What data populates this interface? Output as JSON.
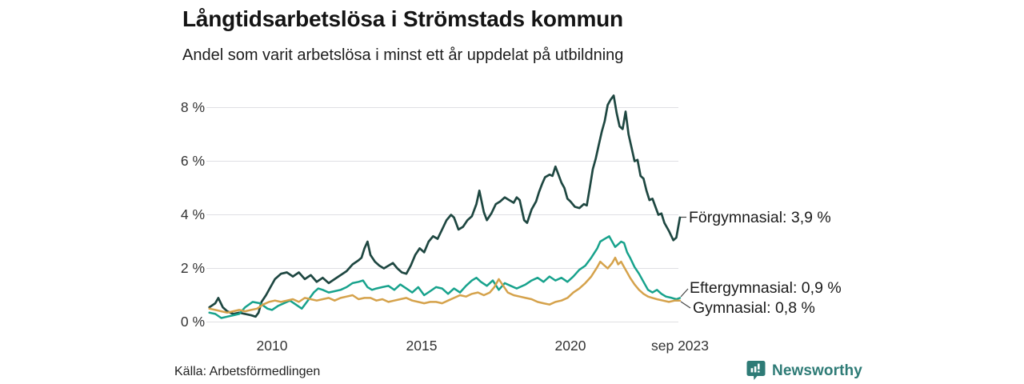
{
  "footer": {
    "source": "Källa: Arbetsförmedlingen",
    "brand": "Newsworthy",
    "brand_color": "#2e7b76"
  },
  "chart_data": {
    "type": "line",
    "title": "Långtidsarbetslösa i Strömstads kommun",
    "subtitle": "Andel som varit arbetslösa i minst ett år uppdelat på utbildning",
    "unit": "%",
    "grid": "horizontal-only",
    "legend_position": "end-of-line-labels",
    "ylim": [
      0,
      8.6
    ],
    "yticks": [
      0,
      2,
      4,
      6,
      8
    ],
    "ytick_labels": [
      "0 %",
      "2 %",
      "4 %",
      "6 %",
      "8 %"
    ],
    "x_range_years": [
      2007.9,
      2023.67
    ],
    "xticks": [
      2010,
      2015,
      2020,
      2023.67
    ],
    "xtick_labels": [
      "2010",
      "2015",
      "2020",
      "sep 2023"
    ],
    "gridline_color": "#dfdfe3",
    "series": [
      {
        "name": "Förgymnasial",
        "end_label": "Förgymnasial: 3,9 %",
        "end_value_pct": 3.9,
        "color": "#1e4741",
        "points": [
          [
            2007.9,
            0.55
          ],
          [
            2008.1,
            0.7
          ],
          [
            2008.2,
            0.9
          ],
          [
            2008.35,
            0.55
          ],
          [
            2008.5,
            0.4
          ],
          [
            2008.7,
            0.3
          ],
          [
            2008.9,
            0.35
          ],
          [
            2009.1,
            0.3
          ],
          [
            2009.3,
            0.25
          ],
          [
            2009.45,
            0.2
          ],
          [
            2009.55,
            0.35
          ],
          [
            2009.65,
            0.75
          ],
          [
            2009.8,
            1.0
          ],
          [
            2009.95,
            1.3
          ],
          [
            2010.1,
            1.6
          ],
          [
            2010.3,
            1.8
          ],
          [
            2010.5,
            1.85
          ],
          [
            2010.7,
            1.7
          ],
          [
            2010.9,
            1.85
          ],
          [
            2011.1,
            1.6
          ],
          [
            2011.3,
            1.75
          ],
          [
            2011.5,
            1.5
          ],
          [
            2011.7,
            1.65
          ],
          [
            2011.9,
            1.45
          ],
          [
            2012.1,
            1.6
          ],
          [
            2012.3,
            1.75
          ],
          [
            2012.5,
            1.9
          ],
          [
            2012.7,
            2.15
          ],
          [
            2012.9,
            2.3
          ],
          [
            2013.0,
            2.4
          ],
          [
            2013.1,
            2.75
          ],
          [
            2013.2,
            3.0
          ],
          [
            2013.3,
            2.5
          ],
          [
            2013.45,
            2.25
          ],
          [
            2013.6,
            2.1
          ],
          [
            2013.75,
            2.0
          ],
          [
            2013.9,
            2.1
          ],
          [
            2014.05,
            2.2
          ],
          [
            2014.2,
            2.0
          ],
          [
            2014.35,
            1.85
          ],
          [
            2014.5,
            1.8
          ],
          [
            2014.65,
            2.1
          ],
          [
            2014.8,
            2.5
          ],
          [
            2014.95,
            2.75
          ],
          [
            2015.1,
            2.6
          ],
          [
            2015.25,
            3.0
          ],
          [
            2015.4,
            3.2
          ],
          [
            2015.55,
            3.1
          ],
          [
            2015.7,
            3.45
          ],
          [
            2015.85,
            3.8
          ],
          [
            2016.0,
            4.0
          ],
          [
            2016.1,
            3.9
          ],
          [
            2016.25,
            3.45
          ],
          [
            2016.4,
            3.55
          ],
          [
            2016.55,
            3.8
          ],
          [
            2016.7,
            3.95
          ],
          [
            2016.85,
            4.4
          ],
          [
            2016.95,
            4.9
          ],
          [
            2017.1,
            4.1
          ],
          [
            2017.2,
            3.8
          ],
          [
            2017.35,
            4.05
          ],
          [
            2017.5,
            4.4
          ],
          [
            2017.65,
            4.5
          ],
          [
            2017.8,
            4.65
          ],
          [
            2017.95,
            4.55
          ],
          [
            2018.1,
            4.45
          ],
          [
            2018.2,
            4.65
          ],
          [
            2018.3,
            4.55
          ],
          [
            2018.45,
            3.8
          ],
          [
            2018.55,
            3.7
          ],
          [
            2018.7,
            4.2
          ],
          [
            2018.85,
            4.5
          ],
          [
            2018.95,
            4.85
          ],
          [
            2019.05,
            5.15
          ],
          [
            2019.15,
            5.4
          ],
          [
            2019.3,
            5.5
          ],
          [
            2019.4,
            5.45
          ],
          [
            2019.5,
            5.8
          ],
          [
            2019.6,
            5.5
          ],
          [
            2019.7,
            5.2
          ],
          [
            2019.8,
            5.0
          ],
          [
            2019.9,
            4.6
          ],
          [
            2020.0,
            4.5
          ],
          [
            2020.15,
            4.3
          ],
          [
            2020.3,
            4.25
          ],
          [
            2020.45,
            4.4
          ],
          [
            2020.55,
            4.35
          ],
          [
            2020.65,
            5.0
          ],
          [
            2020.75,
            5.7
          ],
          [
            2020.85,
            6.1
          ],
          [
            2020.95,
            6.6
          ],
          [
            2021.05,
            7.1
          ],
          [
            2021.15,
            7.5
          ],
          [
            2021.25,
            8.1
          ],
          [
            2021.35,
            8.3
          ],
          [
            2021.45,
            8.45
          ],
          [
            2021.55,
            7.8
          ],
          [
            2021.65,
            7.3
          ],
          [
            2021.75,
            7.2
          ],
          [
            2021.85,
            7.85
          ],
          [
            2021.95,
            7.0
          ],
          [
            2022.05,
            6.5
          ],
          [
            2022.15,
            6.0
          ],
          [
            2022.25,
            6.05
          ],
          [
            2022.35,
            5.45
          ],
          [
            2022.45,
            5.35
          ],
          [
            2022.55,
            4.9
          ],
          [
            2022.65,
            4.55
          ],
          [
            2022.75,
            4.6
          ],
          [
            2022.85,
            4.3
          ],
          [
            2022.95,
            4.0
          ],
          [
            2023.05,
            4.05
          ],
          [
            2023.15,
            3.7
          ],
          [
            2023.3,
            3.4
          ],
          [
            2023.45,
            3.05
          ],
          [
            2023.55,
            3.15
          ],
          [
            2023.67,
            3.9
          ]
        ]
      },
      {
        "name": "Eftergymnasial",
        "end_label": "Eftergymnasial: 0,9 %",
        "end_value_pct": 0.9,
        "color": "#17a28c",
        "points": [
          [
            2007.9,
            0.35
          ],
          [
            2008.1,
            0.3
          ],
          [
            2008.3,
            0.15
          ],
          [
            2008.5,
            0.2
          ],
          [
            2008.7,
            0.25
          ],
          [
            2008.9,
            0.3
          ],
          [
            2009.1,
            0.55
          ],
          [
            2009.35,
            0.75
          ],
          [
            2009.6,
            0.7
          ],
          [
            2009.85,
            0.5
          ],
          [
            2010.0,
            0.45
          ],
          [
            2010.2,
            0.6
          ],
          [
            2010.4,
            0.7
          ],
          [
            2010.6,
            0.8
          ],
          [
            2010.8,
            0.65
          ],
          [
            2011.0,
            0.5
          ],
          [
            2011.2,
            0.8
          ],
          [
            2011.4,
            1.1
          ],
          [
            2011.55,
            1.25
          ],
          [
            2011.7,
            1.2
          ],
          [
            2011.9,
            1.1
          ],
          [
            2012.1,
            1.15
          ],
          [
            2012.3,
            1.2
          ],
          [
            2012.5,
            1.3
          ],
          [
            2012.7,
            1.45
          ],
          [
            2012.9,
            1.5
          ],
          [
            2013.05,
            1.55
          ],
          [
            2013.2,
            1.3
          ],
          [
            2013.35,
            1.2
          ],
          [
            2013.5,
            1.25
          ],
          [
            2013.7,
            1.3
          ],
          [
            2013.9,
            1.35
          ],
          [
            2014.1,
            1.2
          ],
          [
            2014.3,
            1.4
          ],
          [
            2014.5,
            1.25
          ],
          [
            2014.7,
            1.1
          ],
          [
            2014.9,
            1.3
          ],
          [
            2015.1,
            1.0
          ],
          [
            2015.3,
            1.15
          ],
          [
            2015.5,
            1.3
          ],
          [
            2015.7,
            1.25
          ],
          [
            2015.9,
            1.05
          ],
          [
            2016.1,
            1.25
          ],
          [
            2016.3,
            1.1
          ],
          [
            2016.5,
            1.35
          ],
          [
            2016.7,
            1.55
          ],
          [
            2016.85,
            1.65
          ],
          [
            2017.0,
            1.5
          ],
          [
            2017.2,
            1.35
          ],
          [
            2017.4,
            1.55
          ],
          [
            2017.6,
            1.2
          ],
          [
            2017.8,
            1.45
          ],
          [
            2018.0,
            1.35
          ],
          [
            2018.2,
            1.25
          ],
          [
            2018.5,
            1.4
          ],
          [
            2018.7,
            1.55
          ],
          [
            2018.9,
            1.65
          ],
          [
            2019.1,
            1.5
          ],
          [
            2019.3,
            1.7
          ],
          [
            2019.5,
            1.55
          ],
          [
            2019.7,
            1.65
          ],
          [
            2019.9,
            1.5
          ],
          [
            2020.1,
            1.7
          ],
          [
            2020.3,
            1.95
          ],
          [
            2020.5,
            2.1
          ],
          [
            2020.7,
            2.4
          ],
          [
            2020.9,
            2.75
          ],
          [
            2021.0,
            3.0
          ],
          [
            2021.15,
            3.1
          ],
          [
            2021.3,
            3.2
          ],
          [
            2021.4,
            3.0
          ],
          [
            2021.5,
            2.8
          ],
          [
            2021.6,
            2.9
          ],
          [
            2021.7,
            3.0
          ],
          [
            2021.8,
            2.95
          ],
          [
            2021.9,
            2.6
          ],
          [
            2022.0,
            2.4
          ],
          [
            2022.15,
            2.05
          ],
          [
            2022.3,
            1.8
          ],
          [
            2022.45,
            1.5
          ],
          [
            2022.6,
            1.2
          ],
          [
            2022.75,
            1.1
          ],
          [
            2022.9,
            1.2
          ],
          [
            2023.05,
            1.05
          ],
          [
            2023.2,
            0.95
          ],
          [
            2023.4,
            0.9
          ],
          [
            2023.55,
            0.85
          ],
          [
            2023.67,
            0.9
          ]
        ]
      },
      {
        "name": "Gymnasial",
        "end_label": "Gymnasial: 0,8 %",
        "end_value_pct": 0.8,
        "color": "#d5a24b",
        "points": [
          [
            2007.9,
            0.5
          ],
          [
            2008.1,
            0.45
          ],
          [
            2008.3,
            0.4
          ],
          [
            2008.5,
            0.35
          ],
          [
            2008.7,
            0.4
          ],
          [
            2008.9,
            0.45
          ],
          [
            2009.1,
            0.4
          ],
          [
            2009.3,
            0.45
          ],
          [
            2009.5,
            0.5
          ],
          [
            2009.7,
            0.65
          ],
          [
            2009.9,
            0.75
          ],
          [
            2010.1,
            0.8
          ],
          [
            2010.3,
            0.75
          ],
          [
            2010.5,
            0.8
          ],
          [
            2010.7,
            0.85
          ],
          [
            2010.9,
            0.75
          ],
          [
            2011.1,
            0.9
          ],
          [
            2011.3,
            0.85
          ],
          [
            2011.5,
            0.8
          ],
          [
            2011.7,
            0.85
          ],
          [
            2011.9,
            0.9
          ],
          [
            2012.1,
            0.8
          ],
          [
            2012.3,
            0.9
          ],
          [
            2012.5,
            0.95
          ],
          [
            2012.7,
            1.0
          ],
          [
            2012.9,
            0.85
          ],
          [
            2013.1,
            0.9
          ],
          [
            2013.3,
            0.9
          ],
          [
            2013.5,
            0.8
          ],
          [
            2013.7,
            0.85
          ],
          [
            2013.9,
            0.75
          ],
          [
            2014.1,
            0.8
          ],
          [
            2014.3,
            0.85
          ],
          [
            2014.5,
            0.9
          ],
          [
            2014.7,
            0.8
          ],
          [
            2014.9,
            0.75
          ],
          [
            2015.1,
            0.7
          ],
          [
            2015.3,
            0.75
          ],
          [
            2015.5,
            0.75
          ],
          [
            2015.7,
            0.7
          ],
          [
            2015.9,
            0.8
          ],
          [
            2016.1,
            0.9
          ],
          [
            2016.3,
            1.0
          ],
          [
            2016.5,
            0.95
          ],
          [
            2016.7,
            1.05
          ],
          [
            2016.9,
            1.1
          ],
          [
            2017.1,
            1.0
          ],
          [
            2017.3,
            1.1
          ],
          [
            2017.45,
            1.3
          ],
          [
            2017.6,
            1.6
          ],
          [
            2017.75,
            1.35
          ],
          [
            2017.9,
            1.1
          ],
          [
            2018.1,
            1.0
          ],
          [
            2018.3,
            0.95
          ],
          [
            2018.5,
            0.9
          ],
          [
            2018.7,
            0.85
          ],
          [
            2018.9,
            0.75
          ],
          [
            2019.1,
            0.7
          ],
          [
            2019.3,
            0.65
          ],
          [
            2019.5,
            0.75
          ],
          [
            2019.7,
            0.8
          ],
          [
            2019.9,
            0.9
          ],
          [
            2020.1,
            1.1
          ],
          [
            2020.3,
            1.25
          ],
          [
            2020.5,
            1.45
          ],
          [
            2020.7,
            1.7
          ],
          [
            2020.9,
            2.05
          ],
          [
            2021.0,
            2.25
          ],
          [
            2021.1,
            2.15
          ],
          [
            2021.25,
            2.0
          ],
          [
            2021.4,
            2.2
          ],
          [
            2021.5,
            2.4
          ],
          [
            2021.6,
            2.15
          ],
          [
            2021.7,
            2.25
          ],
          [
            2021.8,
            2.05
          ],
          [
            2021.9,
            1.85
          ],
          [
            2022.0,
            1.65
          ],
          [
            2022.15,
            1.4
          ],
          [
            2022.3,
            1.2
          ],
          [
            2022.45,
            1.05
          ],
          [
            2022.6,
            0.95
          ],
          [
            2022.75,
            0.9
          ],
          [
            2022.9,
            0.85
          ],
          [
            2023.1,
            0.8
          ],
          [
            2023.3,
            0.75
          ],
          [
            2023.5,
            0.8
          ],
          [
            2023.67,
            0.8
          ]
        ]
      }
    ]
  }
}
